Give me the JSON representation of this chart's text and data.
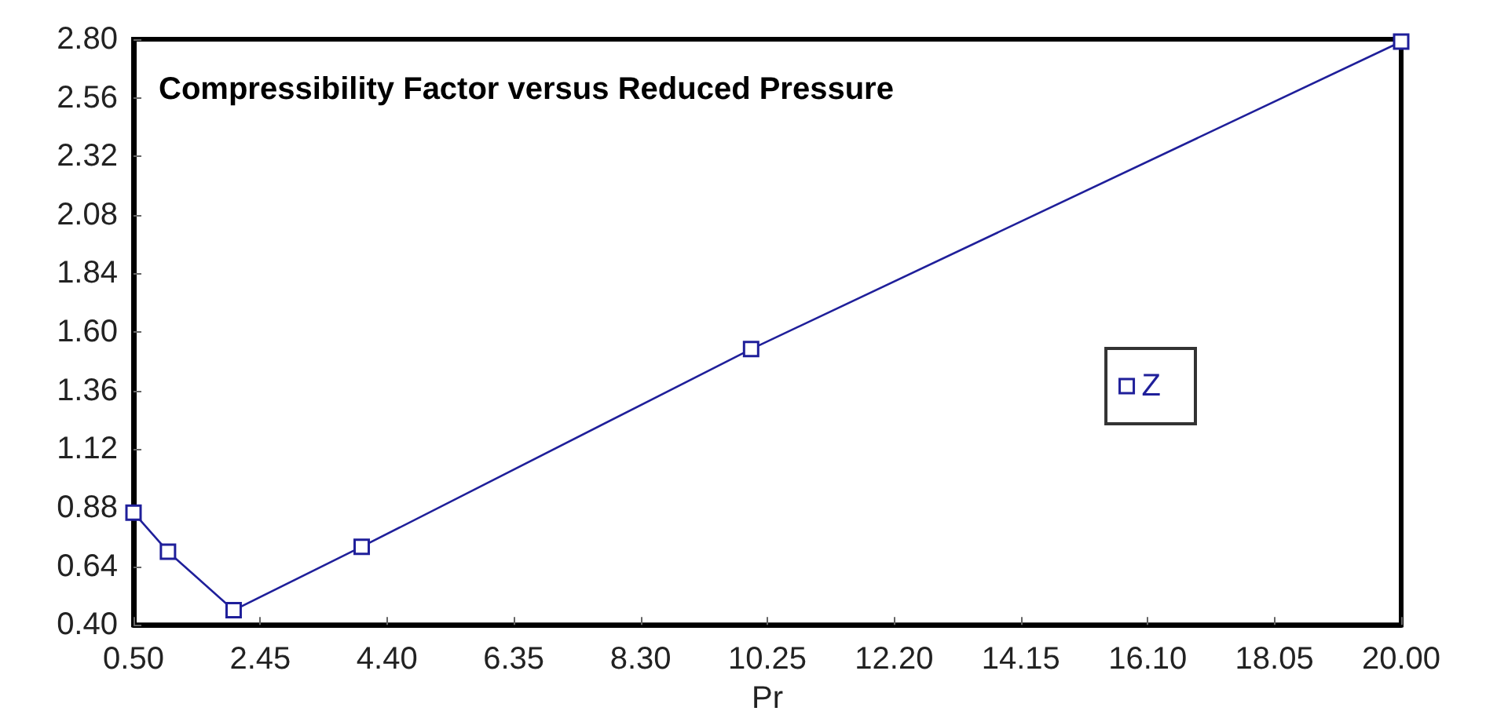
{
  "chart_data": {
    "type": "line",
    "title": "Compressibility Factor versus Reduced Pressure",
    "xlabel": "Pr",
    "x": [
      0.5,
      1.03,
      2.04,
      4.01,
      10.0,
      20.0
    ],
    "series": [
      {
        "name": "Z",
        "color": "#1f1f9a",
        "values": [
          0.86,
          0.7,
          0.46,
          0.72,
          1.53,
          2.79
        ]
      }
    ],
    "xlim": [
      0.5,
      20
    ],
    "xticks": [
      {
        "value": 0.5,
        "label": "0.50"
      },
      2.45,
      {
        "value": 4.4,
        "label": "4.40"
      },
      6.35,
      {
        "value": 8.3,
        "label": "8.30"
      },
      10.25,
      {
        "value": 12.2,
        "label": "12.20"
      },
      14.15,
      {
        "value": 16.1,
        "label": "16.10"
      },
      18.05,
      {
        "value": 20,
        "label": "20.00"
      }
    ],
    "ylim": [
      0.4,
      2.8
    ],
    "yticks": [
      {
        "value": 0.4,
        "label": "0.40"
      },
      0.64,
      0.88,
      1.12,
      1.36,
      {
        "value": 1.6,
        "label": "1.60"
      },
      1.84,
      2.08,
      2.32,
      2.56,
      {
        "value": 2.8,
        "label": "2.80"
      }
    ],
    "grid": false,
    "legend": "right",
    "marker": "square",
    "line_style": "solid"
  }
}
